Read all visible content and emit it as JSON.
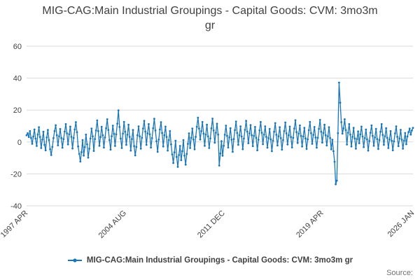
{
  "title": "MIG-CAG:Main Industrial Groupings - Capital Goods: CVM: 3mo3m gr",
  "legend": {
    "label": "MIG-CAG:Main Industrial Groupings - Capital Goods: CVM: 3mo3m gr"
  },
  "source_label": "Source:",
  "colors": {
    "series": "#1976b8",
    "grid": "#d9d9d9",
    "axis_text": "#414042"
  },
  "chart_data": {
    "type": "line",
    "title": "MIG-CAG:Main Industrial Groupings - Capital Goods: CVM: 3mo3m gr",
    "xlabel": "",
    "ylabel": "",
    "ylim": [
      -40,
      60
    ],
    "yticks": [
      -40,
      -20,
      0,
      20,
      40,
      60
    ],
    "grid": "horizontal",
    "legend_position": "bottom",
    "frequency": "monthly",
    "x_start": "1997 APR",
    "x_end": "2026 JAN",
    "total_months": 345,
    "x_ticks": [
      {
        "label": "1997 APR",
        "month": 0
      },
      {
        "label": "2004 AUG",
        "month": 88
      },
      {
        "label": "2011 DEC",
        "month": 176
      },
      {
        "label": "2019 APR",
        "month": 264
      },
      {
        "label": "2026 JAN",
        "month": 345
      }
    ],
    "series": [
      {
        "name": "MIG-CAG:Main Industrial Groupings - Capital Goods: CVM: 3mo3m gr",
        "values": [
          4.2,
          5.5,
          3.1,
          6.8,
          2.5,
          -1.2,
          3.4,
          7.8,
          2.1,
          -2.5,
          4.6,
          9.2,
          3.1,
          -3.8,
          1.5,
          6.4,
          -1.8,
          -5.2,
          2.8,
          7.5,
          1.2,
          -4.5,
          -8.2,
          -3.1,
          2.4,
          6.8,
          10.5,
          4.2,
          -2.1,
          3.5,
          8.1,
          2.4,
          -3.6,
          1.8,
          6.5,
          11.2,
          5.4,
          -1.5,
          4.8,
          9.6,
          3.2,
          -4.1,
          2.5,
          7.8,
          12.4,
          6.1,
          -2.8,
          -7.5,
          -12.3,
          -6.4,
          1.2,
          -8.5,
          -3.2,
          4.6,
          -1.5,
          -9.8,
          -4.2,
          2.1,
          8.4,
          3.5,
          -5.6,
          1.8,
          7.2,
          13.5,
          6.8,
          -2.4,
          3.1,
          9.5,
          4.2,
          -3.5,
          2.8,
          8.6,
          14.2,
          7.5,
          1.2,
          -4.8,
          3.6,
          10.2,
          5.1,
          -2.5,
          4.8,
          11.5,
          19.8,
          9.4,
          2.1,
          -3.8,
          5.2,
          12.6,
          6.4,
          -1.8,
          4.5,
          10.8,
          3.2,
          -5.4,
          1.8,
          7.5,
          -2.6,
          -8.4,
          -3.1,
          4.2,
          9.8,
          3.5,
          -4.2,
          2.6,
          8.4,
          13.2,
          6.5,
          -1.8,
          5.4,
          11.2,
          4.8,
          -3.5,
          2.4,
          8.6,
          14.5,
          7.2,
          0.5,
          -6.2,
          1.5,
          7.8,
          12.4,
          5.6,
          -2.8,
          4.2,
          9.6,
          3.1,
          -5.4,
          1.2,
          6.8,
          -1.5,
          -7.8,
          -13.2,
          -6.5,
          0.8,
          -9.4,
          -15.6,
          -8.2,
          -2.5,
          -11.4,
          -5.8,
          1.2,
          -8.6,
          -14.2,
          -7.5,
          -1.2,
          5.4,
          -3.8,
          2.6,
          8.4,
          1.5,
          -4.6,
          3.2,
          9.5,
          15.2,
          8.4,
          1.6,
          6.8,
          12.5,
          5.2,
          -2.4,
          4.6,
          10.8,
          3.5,
          -3.8,
          2.2,
          8.5,
          14.6,
          7.2,
          -0.5,
          5.8,
          11.4,
          4.6,
          -14.8,
          -7.2,
          0.5,
          -8.6,
          -2.4,
          4.5,
          10.2,
          3.8,
          -3.5,
          2.8,
          8.6,
          1.4,
          -6.2,
          1.8,
          7.4,
          12.8,
          5.6,
          -1.8,
          4.2,
          9.8,
          3.4,
          -4.5,
          2.1,
          7.6,
          13.2,
          6.5,
          -0.8,
          5.4,
          10.6,
          4.2,
          -2.6,
          3.8,
          9.4,
          2.6,
          -5.2,
          1.4,
          7.2,
          12.5,
          5.8,
          -1.4,
          4.6,
          9.8,
          3.2,
          -3.6,
          2.4,
          8.2,
          1.6,
          -5.8,
          0.8,
          6.4,
          11.8,
          4.5,
          -2.2,
          3.6,
          9.2,
          2.4,
          -4.8,
          1.2,
          6.8,
          12.2,
          5.4,
          -1.6,
          4.2,
          9.6,
          3.1,
          -3.4,
          2.6,
          8.4,
          13.6,
          6.2,
          -0.6,
          5.2,
          10.4,
          3.8,
          -2.8,
          3.4,
          8.8,
          2.2,
          -4.4,
          1.6,
          7.4,
          12.6,
          5.5,
          -1.2,
          4.4,
          9.4,
          2.8,
          -3.6,
          2.6,
          8.2,
          13.8,
          6.4,
          -0.4,
          5.6,
          10.8,
          4.2,
          -2.2,
          3.6,
          9.2,
          2.4,
          -4.6,
          1.4,
          -5.8,
          -12.4,
          -26.5,
          -24.2,
          5.5,
          37.2,
          24.6,
          12.4,
          5.2,
          8.6,
          14.2,
          7.4,
          -1.6,
          5.8,
          11.2,
          4.6,
          -2.8,
          3.2,
          8.8,
          2.2,
          -4.2,
          1.8,
          6.6,
          -0.8,
          4.8,
          9.6,
          3.4,
          -3.2,
          2.4,
          7.8,
          1.6,
          -5.4,
          0.6,
          5.8,
          10.4,
          3.8,
          -2.4,
          2.8,
          8.2,
          1.8,
          -4.4,
          1.2,
          6.4,
          11.2,
          4.4,
          -1.8,
          3.6,
          8.6,
          2.6,
          -3.8,
          1.6,
          6.8,
          0.8,
          -5.2,
          0.4,
          5.4,
          9.8,
          3.2,
          -2.6,
          2.2,
          7.6,
          1.4,
          -4.2,
          0.8,
          5.6,
          -1.4,
          3.4,
          6.2,
          8.4,
          4.6,
          7.2,
          8.8
        ]
      }
    ]
  }
}
